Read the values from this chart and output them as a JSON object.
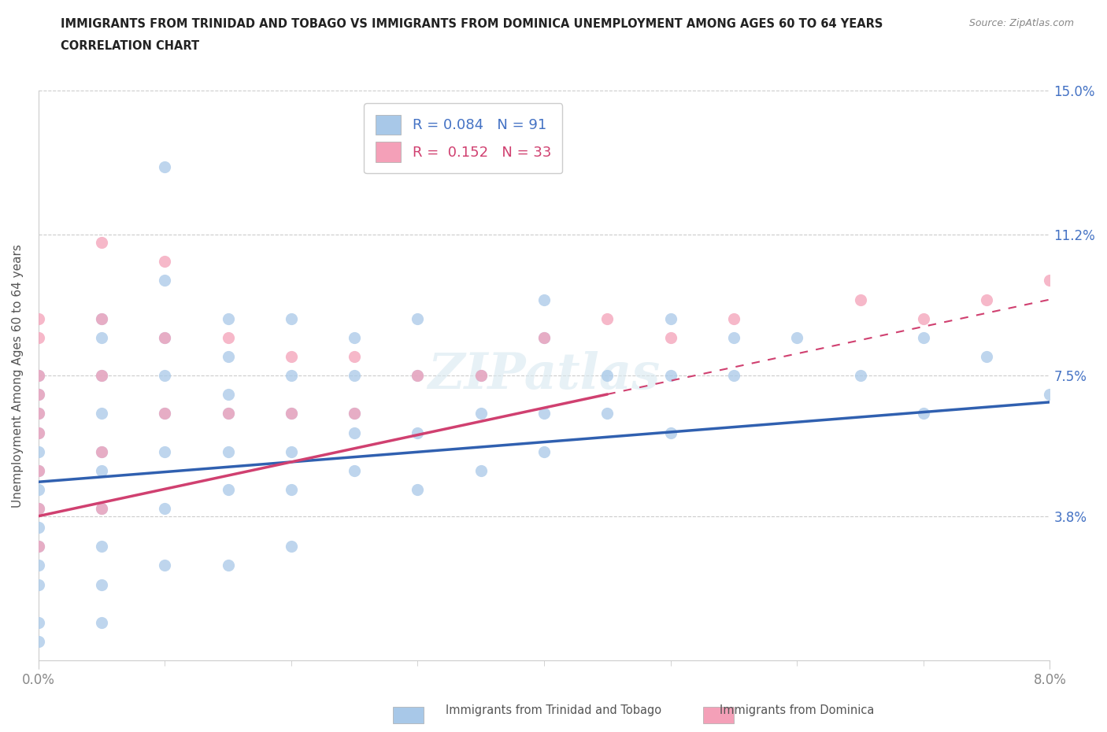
{
  "title_line1": "IMMIGRANTS FROM TRINIDAD AND TOBAGO VS IMMIGRANTS FROM DOMINICA UNEMPLOYMENT AMONG AGES 60 TO 64 YEARS",
  "title_line2": "CORRELATION CHART",
  "source_text": "Source: ZipAtlas.com",
  "ylabel": "Unemployment Among Ages 60 to 64 years",
  "xlim": [
    0.0,
    0.08
  ],
  "ylim": [
    0.0,
    0.15
  ],
  "xtick_labels": [
    "0.0%",
    "8.0%"
  ],
  "ytick_values": [
    0.0,
    0.038,
    0.075,
    0.112,
    0.15
  ],
  "ytick_labels": [
    "",
    "3.8%",
    "7.5%",
    "11.2%",
    "15.0%"
  ],
  "series1_color": "#a8c8e8",
  "series2_color": "#f4a0b8",
  "trendline1_color": "#3060b0",
  "trendline2_color": "#d04070",
  "watermark": "ZIPatlas",
  "scatter1_x": [
    0.0,
    0.0,
    0.0,
    0.0,
    0.0,
    0.0,
    0.0,
    0.0,
    0.0,
    0.0,
    0.0,
    0.0,
    0.0,
    0.0,
    0.005,
    0.005,
    0.005,
    0.005,
    0.005,
    0.005,
    0.005,
    0.005,
    0.005,
    0.005,
    0.01,
    0.01,
    0.01,
    0.01,
    0.01,
    0.01,
    0.01,
    0.01,
    0.015,
    0.015,
    0.015,
    0.015,
    0.015,
    0.015,
    0.015,
    0.02,
    0.02,
    0.02,
    0.02,
    0.02,
    0.02,
    0.025,
    0.025,
    0.025,
    0.025,
    0.025,
    0.03,
    0.03,
    0.03,
    0.03,
    0.035,
    0.035,
    0.035,
    0.04,
    0.04,
    0.04,
    0.04,
    0.045,
    0.045,
    0.05,
    0.05,
    0.05,
    0.055,
    0.055,
    0.06,
    0.065,
    0.07,
    0.07,
    0.075,
    0.08
  ],
  "scatter1_y": [
    0.075,
    0.07,
    0.065,
    0.06,
    0.055,
    0.05,
    0.045,
    0.04,
    0.035,
    0.03,
    0.025,
    0.02,
    0.01,
    0.005,
    0.09,
    0.085,
    0.075,
    0.065,
    0.055,
    0.05,
    0.04,
    0.03,
    0.02,
    0.01,
    0.13,
    0.1,
    0.085,
    0.075,
    0.065,
    0.055,
    0.04,
    0.025,
    0.09,
    0.08,
    0.07,
    0.065,
    0.055,
    0.045,
    0.025,
    0.09,
    0.075,
    0.065,
    0.055,
    0.045,
    0.03,
    0.085,
    0.075,
    0.065,
    0.06,
    0.05,
    0.09,
    0.075,
    0.06,
    0.045,
    0.075,
    0.065,
    0.05,
    0.095,
    0.085,
    0.065,
    0.055,
    0.075,
    0.065,
    0.09,
    0.075,
    0.06,
    0.085,
    0.075,
    0.085,
    0.075,
    0.085,
    0.065,
    0.08,
    0.07
  ],
  "scatter2_x": [
    0.0,
    0.0,
    0.0,
    0.0,
    0.0,
    0.0,
    0.0,
    0.0,
    0.0,
    0.005,
    0.005,
    0.005,
    0.005,
    0.005,
    0.01,
    0.01,
    0.01,
    0.015,
    0.015,
    0.02,
    0.02,
    0.025,
    0.025,
    0.03,
    0.035,
    0.04,
    0.045,
    0.05,
    0.055,
    0.065,
    0.07,
    0.075,
    0.08
  ],
  "scatter2_y": [
    0.09,
    0.085,
    0.075,
    0.07,
    0.065,
    0.06,
    0.05,
    0.04,
    0.03,
    0.11,
    0.09,
    0.075,
    0.055,
    0.04,
    0.105,
    0.085,
    0.065,
    0.085,
    0.065,
    0.08,
    0.065,
    0.08,
    0.065,
    0.075,
    0.075,
    0.085,
    0.09,
    0.085,
    0.09,
    0.095,
    0.09,
    0.095,
    0.1
  ],
  "trendline1_x0": 0.0,
  "trendline1_y0": 0.047,
  "trendline1_x1": 0.08,
  "trendline1_y1": 0.068,
  "trendline2_x0": 0.0,
  "trendline2_y0": 0.038,
  "trendline2_x1": 0.08,
  "trendline2_y1": 0.095
}
